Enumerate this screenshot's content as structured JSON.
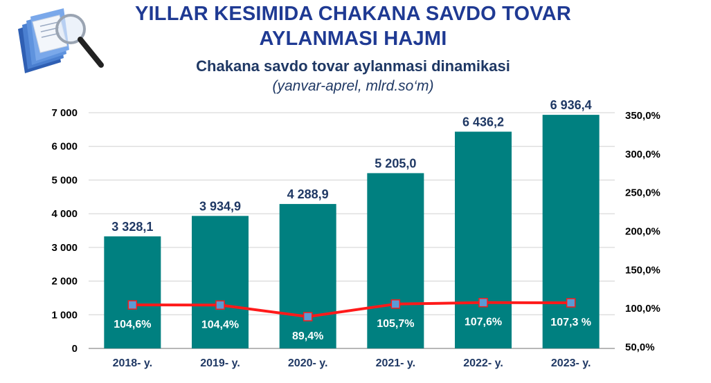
{
  "title_line1": "YILLAR KESIMIDA CHAKANA SAVDO TOVAR",
  "title_line2": "AYLANMASI HAJMI",
  "chart_data": {
    "type": "bar",
    "title": "Chakana savdo tovar aylanmasi dinamikasi",
    "subtitle": "(yanvar-aprel, mlrd.so‘m)",
    "categories": [
      "2018- y.",
      "2019- y.",
      "2020- y.",
      "2021- y.",
      "2022- y.",
      "2023- y."
    ],
    "series": [
      {
        "type": "bar",
        "axis": "left",
        "values": [
          3328.1,
          3934.9,
          4288.9,
          5205.0,
          6436.2,
          6936.4
        ],
        "labels": [
          "3 328,1",
          "3 934,9",
          "4 288,9",
          "5 205,0",
          "6 436,2",
          "6 936,4"
        ],
        "color": "#008080"
      },
      {
        "type": "line",
        "axis": "right",
        "values": [
          104.6,
          104.4,
          89.4,
          105.7,
          107.6,
          107.3
        ],
        "labels": [
          "104,6%",
          "104,4%",
          "89,4%",
          "105,7%",
          "107,6%",
          "107,3 %"
        ],
        "color": "#ff1a1a",
        "marker_color": "#5b9bd5"
      }
    ],
    "y_left": {
      "min": 0,
      "max": 7000,
      "ticks": [
        0,
        1000,
        2000,
        3000,
        4000,
        5000,
        6000,
        7000
      ],
      "tick_labels": [
        "0",
        "1 000",
        "2 000",
        "3 000",
        "4 000",
        "5 000",
        "6 000",
        "7 000"
      ]
    },
    "y_right": {
      "min": 50,
      "max": 350,
      "ticks": [
        50,
        100,
        150,
        200,
        250,
        300,
        350
      ],
      "tick_labels": [
        "50,0%",
        "100,0%",
        "150,0%",
        "200,0%",
        "250,0%",
        "300,0%",
        "350,0%"
      ]
    },
    "grid": true,
    "legend": "none"
  }
}
